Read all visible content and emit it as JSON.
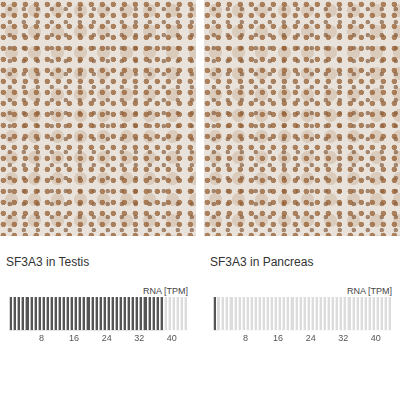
{
  "chart_data": [
    {
      "type": "bar",
      "title": "SF3A3 in Testis",
      "xlabel": "RNA [TPM]",
      "orientation": "horizontal",
      "categories": [
        null
      ],
      "values": [
        38
      ],
      "color": "#555555",
      "xlim": [
        0,
        44
      ],
      "xticks": [
        8,
        16,
        24,
        32,
        40
      ],
      "tick_labels": "x"
    },
    {
      "type": "bar",
      "title": "SF3A3 in Pancreas",
      "xlabel": "RNA [TPM]",
      "orientation": "horizontal",
      "categories": [
        null
      ],
      "values": [
        1
      ],
      "color": "#555555",
      "xlim": [
        0,
        44
      ],
      "xticks": [
        8,
        16,
        24,
        32,
        40
      ],
      "tick_labels": "x"
    }
  ]
}
